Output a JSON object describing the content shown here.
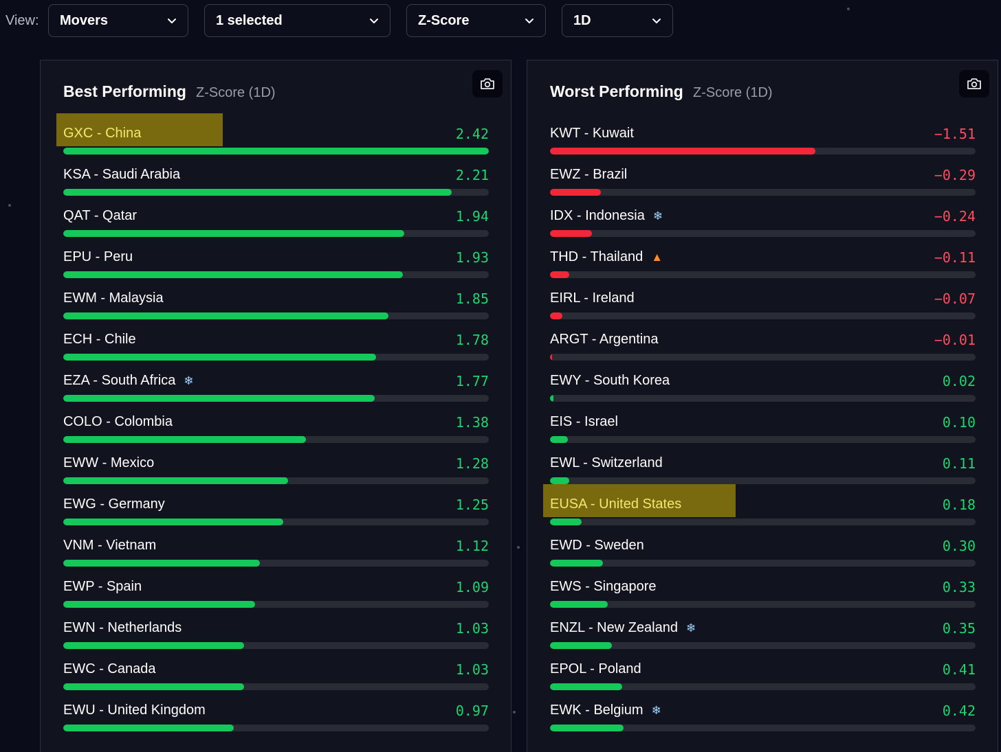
{
  "toolbar": {
    "view_label": "View:",
    "view_value": "Movers",
    "selection_value": "1 selected",
    "metric_value": "Z-Score",
    "period_value": "1D"
  },
  "best": {
    "title": "Best Performing",
    "subtitle": "Z-Score (1D)",
    "scale_max": 2.42,
    "rows": [
      {
        "name": "GXC - China",
        "value": "2.42",
        "badge": ""
      },
      {
        "name": "KSA - Saudi Arabia",
        "value": "2.21",
        "badge": ""
      },
      {
        "name": "QAT - Qatar",
        "value": "1.94",
        "badge": ""
      },
      {
        "name": "EPU - Peru",
        "value": "1.93",
        "badge": ""
      },
      {
        "name": "EWM - Malaysia",
        "value": "1.85",
        "badge": ""
      },
      {
        "name": "ECH - Chile",
        "value": "1.78",
        "badge": ""
      },
      {
        "name": "EZA - South Africa",
        "value": "1.77",
        "badge": "snowflake"
      },
      {
        "name": "COLO - Colombia",
        "value": "1.38",
        "badge": ""
      },
      {
        "name": "EWW - Mexico",
        "value": "1.28",
        "badge": ""
      },
      {
        "name": "EWG - Germany",
        "value": "1.25",
        "badge": ""
      },
      {
        "name": "VNM - Vietnam",
        "value": "1.12",
        "badge": ""
      },
      {
        "name": "EWP - Spain",
        "value": "1.09",
        "badge": ""
      },
      {
        "name": "EWN - Netherlands",
        "value": "1.03",
        "badge": ""
      },
      {
        "name": "EWC - Canada",
        "value": "1.03",
        "badge": ""
      },
      {
        "name": "EWU - United Kingdom",
        "value": "0.97",
        "badge": ""
      }
    ]
  },
  "worst": {
    "title": "Worst Performing",
    "subtitle": "Z-Score (1D)",
    "scale_max": 2.42,
    "rows": [
      {
        "name": "KWT - Kuwait",
        "value": "-1.51",
        "badge": ""
      },
      {
        "name": "EWZ - Brazil",
        "value": "-0.29",
        "badge": ""
      },
      {
        "name": "IDX - Indonesia",
        "value": "-0.24",
        "badge": "snowflake"
      },
      {
        "name": "THD - Thailand",
        "value": "-0.11",
        "badge": "fire"
      },
      {
        "name": "EIRL - Ireland",
        "value": "-0.07",
        "badge": ""
      },
      {
        "name": "ARGT - Argentina",
        "value": "-0.01",
        "badge": ""
      },
      {
        "name": "EWY - South Korea",
        "value": "0.02",
        "badge": ""
      },
      {
        "name": "EIS - Israel",
        "value": "0.10",
        "badge": ""
      },
      {
        "name": "EWL - Switzerland",
        "value": "0.11",
        "badge": ""
      },
      {
        "name": "EUSA - United States",
        "value": "0.18",
        "badge": ""
      },
      {
        "name": "EWD - Sweden",
        "value": "0.30",
        "badge": ""
      },
      {
        "name": "EWS - Singapore",
        "value": "0.33",
        "badge": ""
      },
      {
        "name": "ENZL - New Zealand",
        "value": "0.35",
        "badge": "snowflake"
      },
      {
        "name": "EPOL - Poland",
        "value": "0.41",
        "badge": ""
      },
      {
        "name": "EWK - Belgium",
        "value": "0.42",
        "badge": "snowflake"
      }
    ]
  },
  "highlighted": [
    "GXC - China",
    "EUSA - United States"
  ],
  "colors": {
    "positive": "#14c95a",
    "negative": "#f2283a",
    "highlight": "#7a6a0f"
  }
}
